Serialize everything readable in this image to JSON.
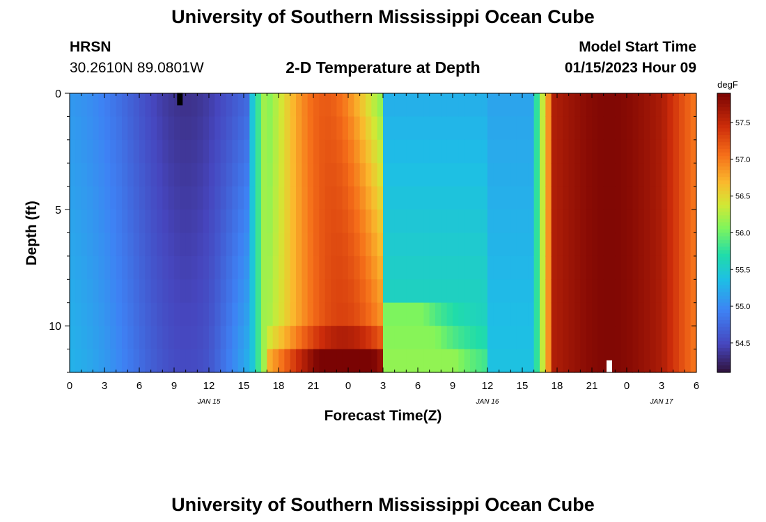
{
  "page": {
    "title_top": "University of Southern Mississippi Ocean Cube",
    "title_bottom": "University of Southern Mississippi Ocean Cube",
    "station": "HRSN",
    "coordinates": "30.2610N  89.0801W",
    "model_start_label": "Model Start Time",
    "model_start_value": "01/15/2023 Hour 09"
  },
  "chart_data": {
    "type": "heatmap",
    "title": "2-D Temperature at Depth",
    "xlabel": "Forecast Time(Z)",
    "ylabel": "Depth (ft)",
    "xlim": [
      0,
      54
    ],
    "ylim": [
      12,
      0
    ],
    "x_unit": "hours from 01/15/2023 00Z",
    "x_ticks": [
      0,
      3,
      6,
      9,
      12,
      15,
      18,
      21,
      24,
      27,
      30,
      33,
      36,
      39,
      42,
      45,
      48,
      51,
      54
    ],
    "x_tick_labels": [
      "0",
      "3",
      "6",
      "9",
      "12",
      "15",
      "18",
      "21",
      "0",
      "3",
      "6",
      "9",
      "12",
      "15",
      "18",
      "21",
      "0",
      "3",
      "6"
    ],
    "date_labels": [
      {
        "x": 12,
        "label": "JAN 15"
      },
      {
        "x": 36,
        "label": "JAN 16"
      },
      {
        "x": 51,
        "label": "JAN 17"
      }
    ],
    "y_ticks": [
      0,
      5,
      10
    ],
    "y_tick_labels": [
      "0",
      "5",
      "10"
    ],
    "colorbar": {
      "unit": "degF",
      "min": 54.1,
      "max": 57.9,
      "tick_values": [
        54.5,
        55.0,
        55.5,
        56.0,
        56.5,
        57.0,
        57.5
      ],
      "tick_labels": [
        "54.5",
        "55.0",
        "55.5",
        "56.0",
        "56.5",
        "57.0",
        "57.5"
      ]
    },
    "markers": [
      {
        "x": 9.5,
        "depth": 0.25,
        "color": "#000000"
      },
      {
        "x": 46.5,
        "depth": 11.75,
        "color": "#ffffff"
      }
    ]
  }
}
